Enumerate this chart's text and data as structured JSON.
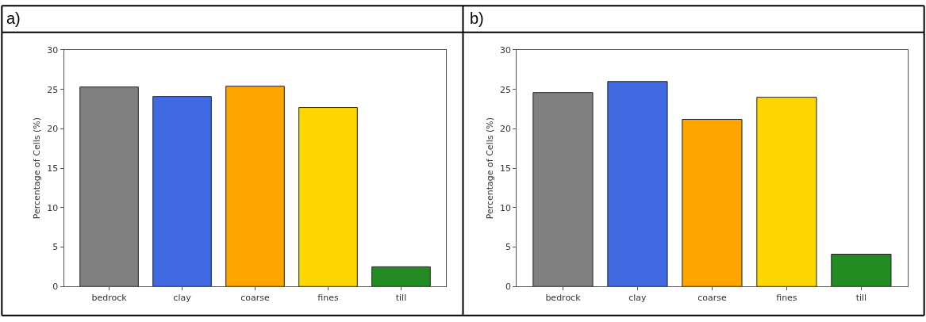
{
  "chart_data": [
    {
      "type": "bar",
      "title": "a)",
      "ylabel": "Percentage of Cells (%)",
      "categories": [
        "bedrock",
        "clay",
        "coarse",
        "fines",
        "till"
      ],
      "values": [
        25.3,
        24.1,
        25.4,
        22.7,
        2.5
      ],
      "colors": [
        "#808080",
        "#4169e1",
        "#ffa500",
        "#ffd700",
        "#228b22"
      ],
      "ylim": [
        0,
        30
      ],
      "yticks": [
        0,
        5,
        10,
        15,
        20,
        25,
        30
      ]
    },
    {
      "type": "bar",
      "title": "b)",
      "ylabel": "Percentage of Cells (%)",
      "categories": [
        "bedrock",
        "clay",
        "coarse",
        "fines",
        "till"
      ],
      "values": [
        24.6,
        26.0,
        21.2,
        24.0,
        4.1
      ],
      "colors": [
        "#808080",
        "#4169e1",
        "#ffa500",
        "#ffd700",
        "#228b22"
      ],
      "ylim": [
        0,
        30
      ],
      "yticks": [
        0,
        5,
        10,
        15,
        20,
        25,
        30
      ]
    }
  ]
}
